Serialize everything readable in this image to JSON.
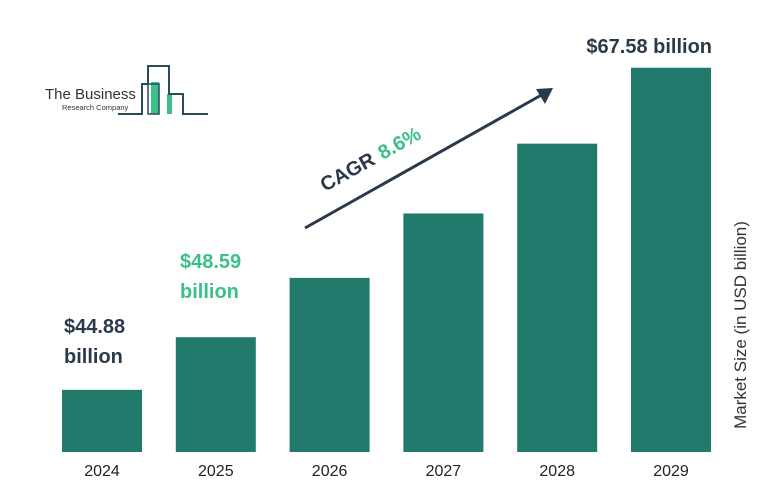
{
  "chart_data": {
    "type": "bar",
    "categories": [
      "2024",
      "2025",
      "2026",
      "2027",
      "2028",
      "2029"
    ],
    "values": [
      44.88,
      48.59,
      52.77,
      57.31,
      62.23,
      67.58
    ],
    "ylabel": "Market Size (in USD billion)",
    "xlabel": "",
    "ylim": [
      40.5,
      70
    ],
    "grid": false,
    "data_labels": {
      "first_line1": "$44.88",
      "first_line2": "billion",
      "second_line1": "$48.59",
      "second_line2": "billion",
      "last": "$67.58 billion"
    },
    "annotation": {
      "cagr_label": "CAGR",
      "cagr_value": "8.6%"
    }
  },
  "logo": {
    "line1": "The Business",
    "line2": "Research Company"
  },
  "colors": {
    "bar": "#217a6b",
    "dark_text": "#2b3a4a",
    "accent": "#3dbf8a"
  }
}
